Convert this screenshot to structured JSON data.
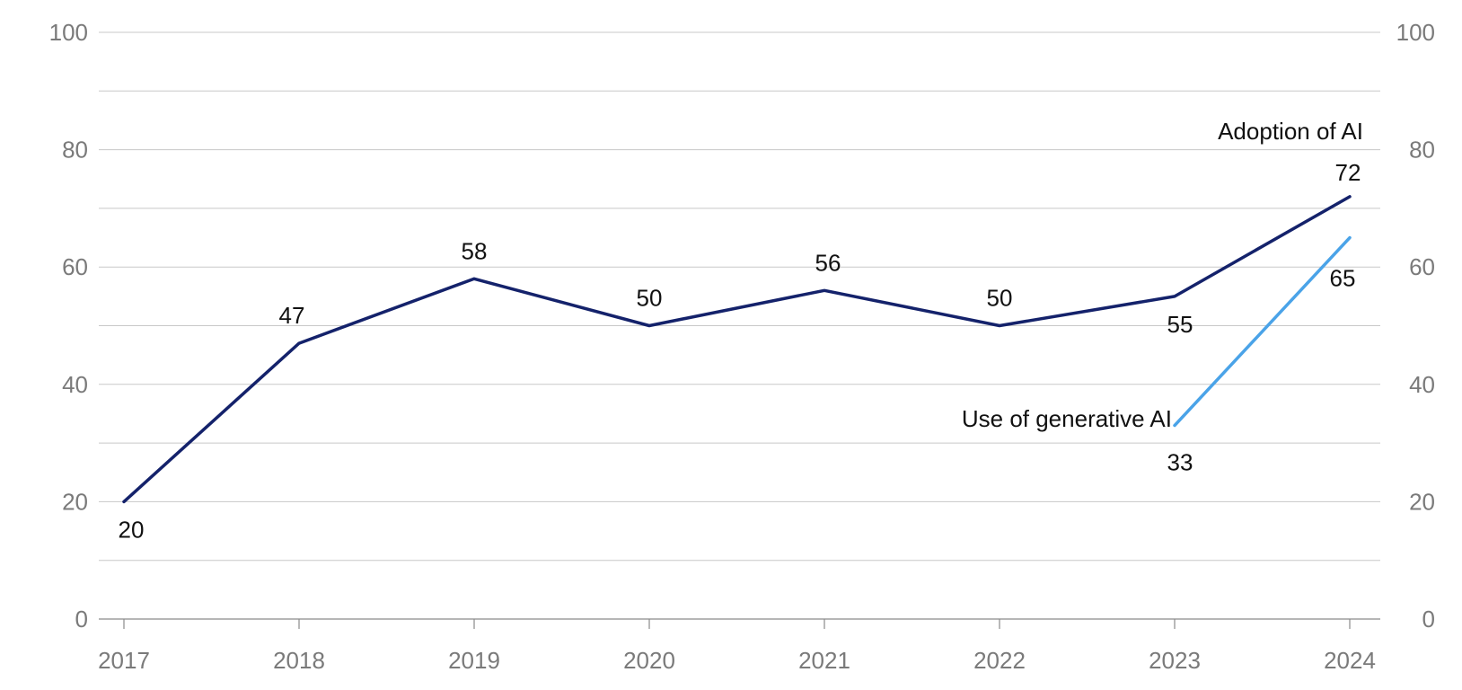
{
  "chart_data": {
    "type": "line",
    "title": "",
    "xlabel": "",
    "ylabel": "",
    "ylim": [
      0,
      100
    ],
    "y_ticks": [
      0,
      20,
      40,
      60,
      80,
      100
    ],
    "y_ticks_labeled_right": true,
    "grid": true,
    "legend": "inline labels at line ends",
    "categories": [
      "2017",
      "2018",
      "2019",
      "2020",
      "2021",
      "2022",
      "2023",
      "2024"
    ],
    "series": [
      {
        "name": "Adoption of AI",
        "color": "#14226b",
        "x": [
          "2017",
          "2018",
          "2019",
          "2020",
          "2021",
          "2022",
          "2023",
          "2024"
        ],
        "values": [
          20,
          47,
          58,
          50,
          56,
          50,
          55,
          72
        ],
        "data_labels": [
          "20",
          "47",
          "58",
          "50",
          "56",
          "50",
          "55",
          "72"
        ]
      },
      {
        "name": "Use of generative AI",
        "color": "#4aa3e8",
        "x": [
          "2023",
          "2024"
        ],
        "values": [
          33,
          65
        ],
        "data_labels": [
          "33",
          "65"
        ]
      }
    ]
  }
}
